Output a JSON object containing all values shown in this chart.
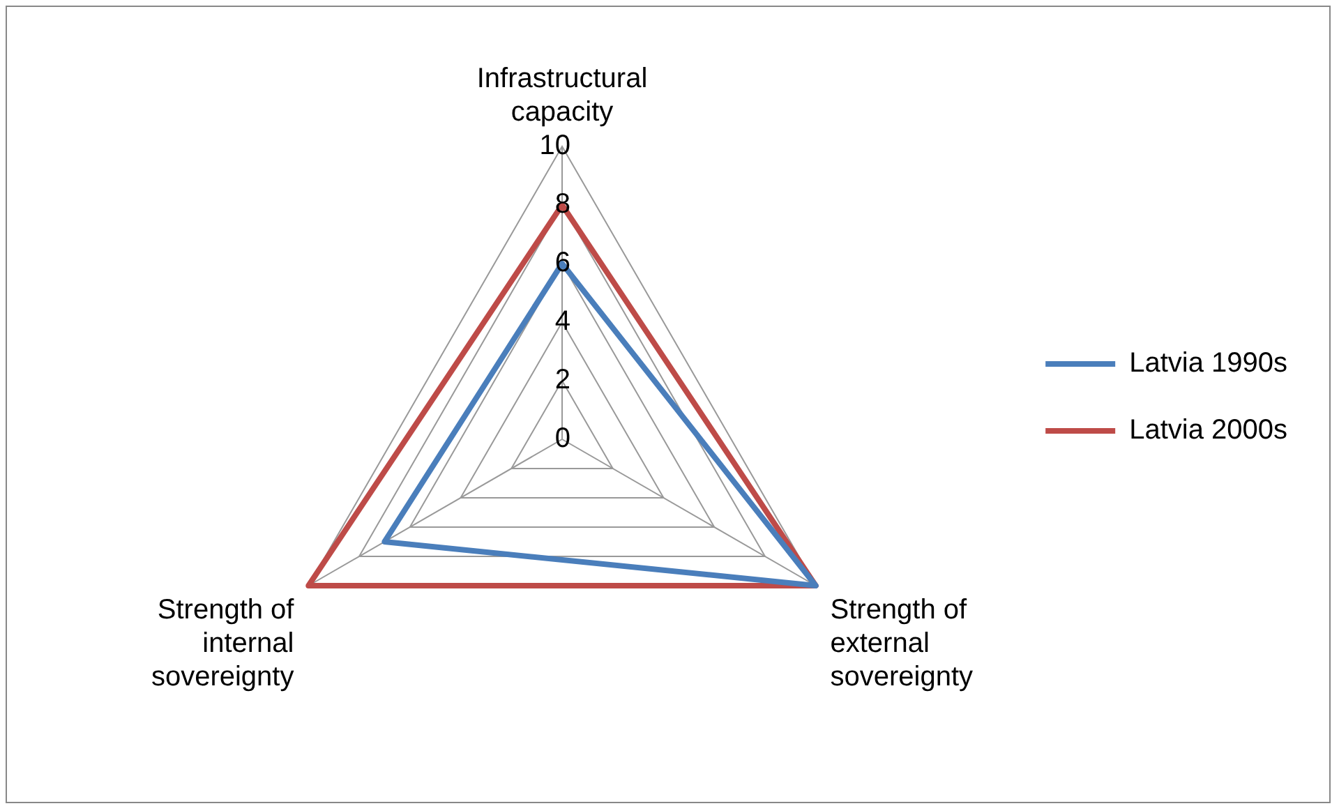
{
  "chart_data": {
    "type": "radar",
    "categories": [
      "Infrastructural capacity",
      "Strength of external sovereignty",
      "Strength of internal sovereignty"
    ],
    "series": [
      {
        "name": "Latvia 1990s",
        "color": "#4a7ebb",
        "values": [
          6,
          10,
          7
        ]
      },
      {
        "name": "Latvia 2000s",
        "color": "#be4b48",
        "values": [
          8,
          10,
          10
        ]
      }
    ],
    "ylim": [
      0,
      10
    ],
    "yticks": [
      0,
      2,
      4,
      6,
      8,
      10
    ],
    "grid": true,
    "legend": "right",
    "marker": "none"
  }
}
